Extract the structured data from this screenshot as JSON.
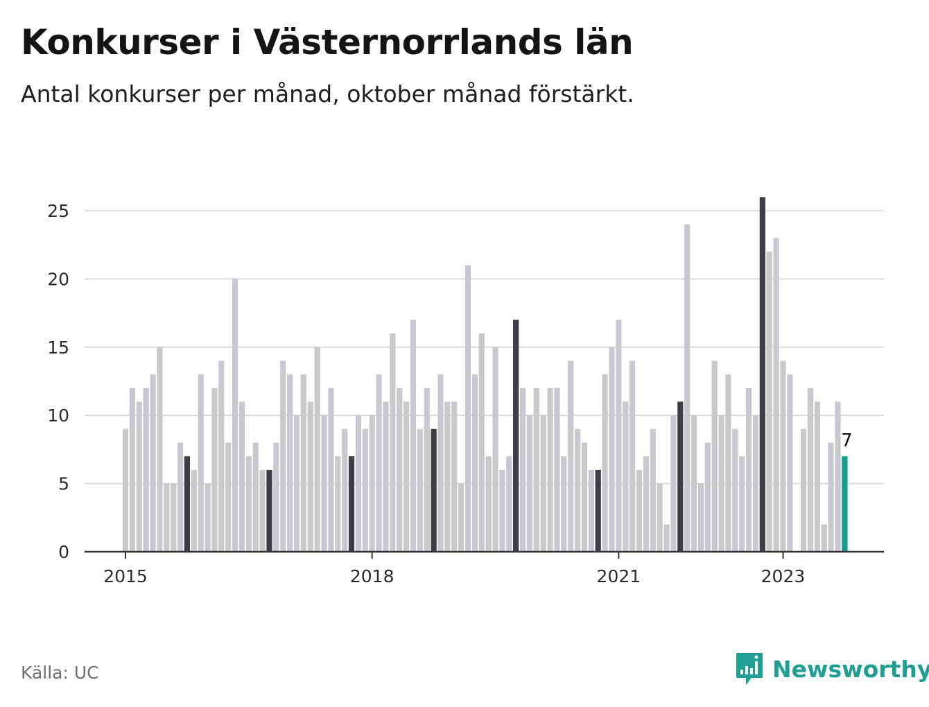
{
  "header": {
    "title": "Konkurser i Västernorrlands län",
    "subtitle": "Antal konkurser per månad, oktober månad förstärkt."
  },
  "footer": {
    "source": "Källa: UC",
    "brand": "Newsworthy"
  },
  "colors": {
    "bar": "#c8c8d0",
    "october": "#3d3d48",
    "latest": "#139e92",
    "grid": "#dcdcdc",
    "axis": "#333333",
    "brand": "#1f9e93"
  },
  "chart_data": {
    "type": "bar",
    "title": "Konkurser i Västernorrlands län",
    "subtitle": "Antal konkurser per månad, oktober månad förstärkt.",
    "start": "2015-01",
    "x_tick_labels": [
      "2015",
      "2018",
      "2021",
      "2023"
    ],
    "y_ticks": [
      0,
      5,
      10,
      15,
      20,
      25
    ],
    "ylim": [
      0,
      27
    ],
    "grid": true,
    "highlight": "october",
    "series": [
      {
        "values": [
          9,
          12,
          11,
          12,
          13,
          15,
          5,
          5,
          8,
          7,
          6,
          13,
          5,
          12,
          14,
          8,
          20,
          11,
          7,
          8,
          6,
          6,
          8,
          14,
          13,
          10,
          13,
          11,
          15,
          10,
          12,
          7,
          9,
          7,
          10,
          9,
          10,
          13,
          11,
          16,
          12,
          11,
          17,
          9,
          12,
          9,
          13,
          11,
          11,
          5,
          21,
          13,
          16,
          7,
          15,
          6,
          7,
          17,
          12,
          10,
          12,
          10,
          12,
          12,
          7,
          14,
          9,
          8,
          6,
          6,
          13,
          15,
          17,
          11,
          14,
          6,
          7,
          9,
          5,
          2,
          10,
          11,
          24,
          10,
          5,
          8,
          14,
          10,
          13,
          9,
          7,
          12,
          10,
          26,
          22,
          23,
          14,
          13,
          0,
          9,
          12,
          11,
          2,
          8,
          11,
          7
        ]
      }
    ],
    "latest_label": "7"
  }
}
